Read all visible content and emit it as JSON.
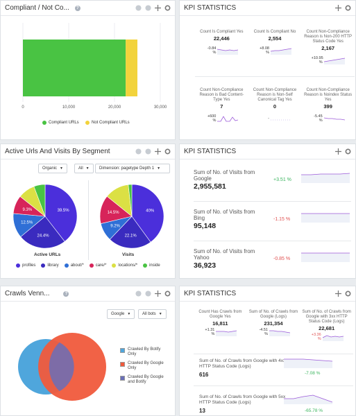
{
  "compliance_panel": {
    "title": "Compliant / Not Co...",
    "chart_data": {
      "type": "bar",
      "orientation": "horizontal",
      "stacked": true,
      "categories": [
        ""
      ],
      "series": [
        {
          "name": "Compliant URLs",
          "values": [
            22446
          ],
          "color": "#49c343"
        },
        {
          "name": "Not Compliant URLs",
          "values": [
            2554
          ],
          "color": "#f2d33c"
        }
      ],
      "xlim": [
        0,
        30000
      ],
      "x_ticks": [
        "0",
        "10,000",
        "20,000",
        "30,000"
      ]
    }
  },
  "kpi1": {
    "title": "KPI STATISTICS",
    "cells": [
      {
        "label": "Count Is Compliant Yes",
        "value": "22,446",
        "pct": "-0.84 %"
      },
      {
        "label": "Count Is Compliant No",
        "value": "2,554",
        "pct": "+8.08 %"
      },
      {
        "label": "Count Non-Compliance Reason is Non-200 HTTP Status Code Yes",
        "value": "2,167",
        "pct": "+10.95 %"
      },
      {
        "label": "Count Non-Compliance Reason is Bad Content-Type Yes",
        "value": "7",
        "pct": "+600 %"
      },
      {
        "label": "Count Non-Compliance Reason is Non-Self Canonical Tag Yes",
        "value": "0",
        "pct": "-"
      },
      {
        "label": "Count Non-Compliance Reason is Noindex Status Yes",
        "value": "399",
        "pct": "-5.45 %"
      }
    ]
  },
  "segments_panel": {
    "title": "Active Urls And Visits By Segment",
    "filters": [
      "Organic",
      "All",
      "Dimension: pagetype Depth 1"
    ],
    "chart_data": [
      {
        "type": "pie",
        "title": "Active URLs",
        "categories": [
          "profiles",
          "library",
          "about/*",
          "care/*",
          "locations/*",
          "inside"
        ],
        "values": [
          39.5,
          24.4,
          12.5,
          9.3,
          8.6,
          5.7
        ],
        "data_labels": [
          "39.5%",
          "24.4%",
          "12.5%",
          "9.3%",
          "",
          ""
        ]
      },
      {
        "type": "pie",
        "title": "Visits",
        "categories": [
          "profiles",
          "library",
          "about/*",
          "care/*",
          "locations/*",
          "inside"
        ],
        "values": [
          40,
          22.1,
          9.2,
          14.5,
          12.4,
          1.8
        ],
        "data_labels": [
          "40%",
          "22.1%",
          "9.2%",
          "14.5%",
          "",
          ""
        ]
      }
    ],
    "legend": [
      {
        "name": "profiles",
        "color": "#4b2fdb"
      },
      {
        "name": "library",
        "color": "#3a2bbf"
      },
      {
        "name": "about/*",
        "color": "#2f6fd6"
      },
      {
        "name": "care/*",
        "color": "#d7245a"
      },
      {
        "name": "locations/*",
        "color": "#dbe044"
      },
      {
        "name": "inside",
        "color": "#49c343"
      }
    ]
  },
  "kpi2": {
    "title": "KPI STATISTICS",
    "rows": [
      {
        "label": "Sum of No. of Visits from Google",
        "value": "2,955,581",
        "pct": "+3.51 %",
        "dir": "pos"
      },
      {
        "label": "Sum of No. of Visits from Bing",
        "value": "95,148",
        "pct": "-1.15 %",
        "dir": "neg"
      },
      {
        "label": "Sum of No. of Visits from Yahoo",
        "value": "36,923",
        "pct": "-0.85 %",
        "dir": "neg"
      }
    ]
  },
  "crawls_panel": {
    "title": "Crawls Venn...",
    "filters": [
      "Google",
      "All bots"
    ],
    "legend": [
      {
        "name": "Crawled By Botify Only",
        "color": "#4fa6dc"
      },
      {
        "name": "Crawled By Google Only",
        "color": "#f05a3c"
      },
      {
        "name": "Crawled By Google and Botify",
        "color": "#6a6fb8"
      }
    ]
  },
  "kpi3": {
    "title": "KPI STATISTICS",
    "cells": [
      {
        "label": "Count Has Crawls from Google Yes",
        "value": "16,811",
        "pct": "+1.31 %"
      },
      {
        "label": "Sum of No. of Crawls from Google (Logs)",
        "value": "231,354",
        "pct": "-4.51 %"
      },
      {
        "label": "Sum of No. of Crawls from Google with 3xx HTTP Status Code (Logs)",
        "value": "22,681",
        "pct": "+3.36 %"
      }
    ],
    "rows": [
      {
        "label": "Sum of No. of Crawls from Google with 4xx HTTP Status Code (Logs)",
        "value": "616",
        "pct": "-7.08 %",
        "dir": "pos"
      },
      {
        "label": "Sum of No. of Crawls from Google with 5xx HTTP Status Code (Logs)",
        "value": "13",
        "pct": "-65.78 %",
        "dir": "pos"
      }
    ]
  }
}
